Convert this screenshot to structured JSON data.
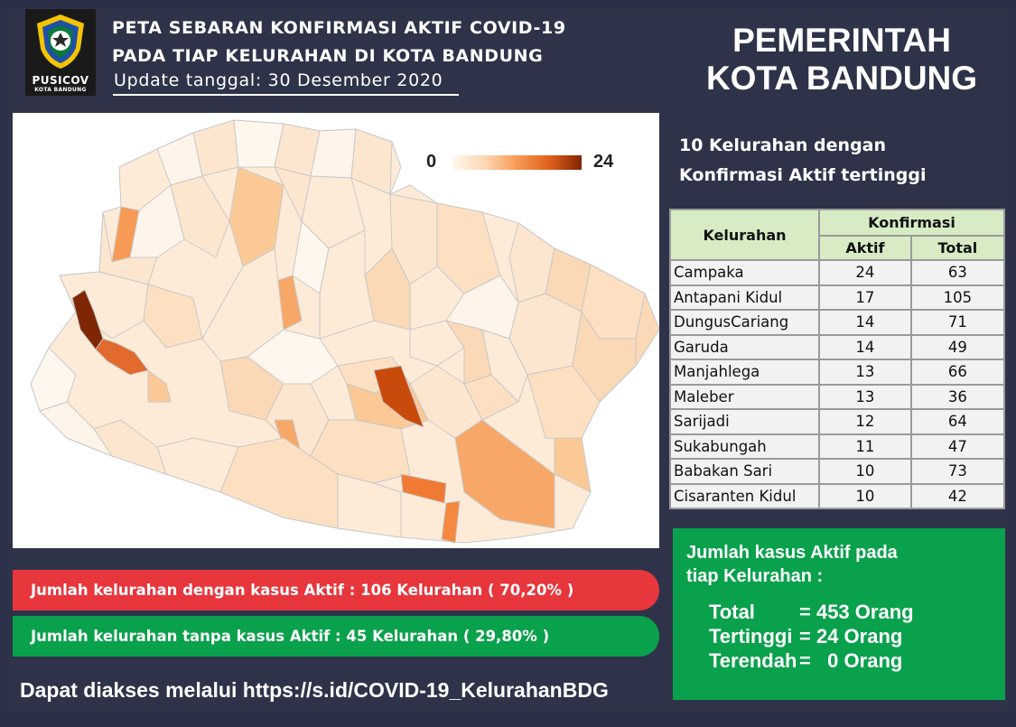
{
  "header": {
    "logo_text": "PUSICOV",
    "logo_subtext": "KOTA BANDUNG",
    "title_line1": "PETA SEBARAN KONFIRMASI AKTIF COVID-19",
    "title_line2": "PADA TIAP KELURAHAN DI KOTA BANDUNG",
    "update": "Update tanggal: 30 Desember 2020",
    "government_line1": "PEMERINTAH",
    "government_line2": "KOTA BANDUNG"
  },
  "map": {
    "legend_min": "0",
    "legend_max": "24",
    "colors": [
      "#fff7ee",
      "#fdd8b3",
      "#f79a55",
      "#e0601a",
      "#7f2704"
    ]
  },
  "top10": {
    "title_line1": "10 Kelurahan dengan",
    "title_line2": "Konfirmasi Aktif tertinggi",
    "col_kelurahan": "Kelurahan",
    "col_konfirmasi": "Konfirmasi",
    "col_aktif": "Aktif",
    "col_total": "Total",
    "rows": [
      {
        "name": "Campaka",
        "aktif": "24",
        "total": "63"
      },
      {
        "name": "Antapani Kidul",
        "aktif": "17",
        "total": "105"
      },
      {
        "name": "DungusCariang",
        "aktif": "14",
        "total": "71"
      },
      {
        "name": "Garuda",
        "aktif": "14",
        "total": "49"
      },
      {
        "name": "Manjahlega",
        "aktif": "13",
        "total": "66"
      },
      {
        "name": "Maleber",
        "aktif": "13",
        "total": "36"
      },
      {
        "name": "Sarijadi",
        "aktif": "12",
        "total": "64"
      },
      {
        "name": "Sukabungah",
        "aktif": "11",
        "total": "47"
      },
      {
        "name": "Babakan Sari",
        "aktif": "10",
        "total": "73"
      },
      {
        "name": "Cisaranten Kidul",
        "aktif": "10",
        "total": "42"
      }
    ]
  },
  "stats": {
    "with_active": "Jumlah kelurahan dengan kasus Aktif : 106 Kelurahan ( 70,20% )",
    "without_active": "Jumlah kelurahan tanpa kasus Aktif : 45 Kelurahan ( 29,80% )",
    "access": "Dapat diakses melalui https://s.id/COVID-19_KelurahanBDG"
  },
  "summary": {
    "title_line1": "Jumlah kasus Aktif pada",
    "title_line2": "tiap Kelurahan :",
    "total_label": "Total",
    "total_value": "= 453 Orang",
    "highest_label": "Tertinggi",
    "highest_value": "= 24 Orang",
    "lowest_label": "Terendah",
    "lowest_value": "=   0 Orang"
  }
}
